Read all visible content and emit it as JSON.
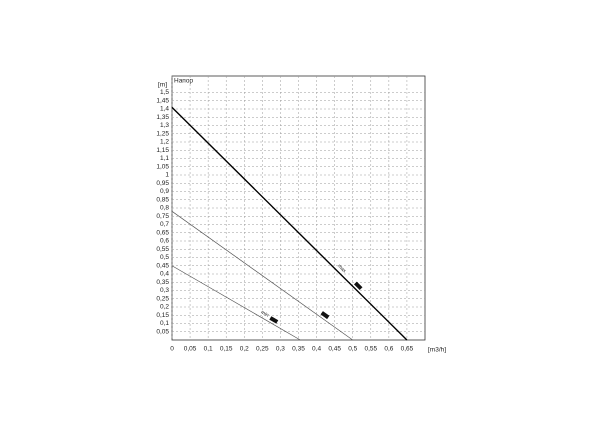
{
  "chart_data": {
    "type": "line",
    "title": "Напор",
    "y_label": "[m]",
    "x_label": "[m3/h]",
    "xlim": [
      0,
      0.7
    ],
    "ylim": [
      0,
      1.6
    ],
    "grid": true,
    "xticks": [
      0,
      {
        "value": 0.05,
        "label": "0,05"
      },
      {
        "value": 0.1,
        "label": "0,1"
      },
      {
        "value": 0.15,
        "label": "0,15"
      },
      {
        "value": 0.2,
        "label": "0,2"
      },
      {
        "value": 0.25,
        "label": "0,25"
      },
      {
        "value": 0.3,
        "label": "0,3"
      },
      {
        "value": 0.35,
        "label": "0,35"
      },
      {
        "value": 0.4,
        "label": "0,4"
      },
      {
        "value": 0.45,
        "label": "0,45"
      },
      {
        "value": 0.5,
        "label": "0,5"
      },
      {
        "value": 0.55,
        "label": "0,55"
      },
      {
        "value": 0.6,
        "label": "0,6"
      },
      {
        "value": 0.65,
        "label": "0,65"
      }
    ],
    "yticks": [
      {
        "value": 0.05,
        "label": "0,05"
      },
      {
        "value": 0.1,
        "label": "0,1"
      },
      {
        "value": 0.15,
        "label": "0,15"
      },
      {
        "value": 0.2,
        "label": "0,2"
      },
      {
        "value": 0.25,
        "label": "0,25"
      },
      {
        "value": 0.3,
        "label": "0,3"
      },
      {
        "value": 0.35,
        "label": "0,35"
      },
      {
        "value": 0.4,
        "label": "0,4"
      },
      {
        "value": 0.45,
        "label": "0,45"
      },
      {
        "value": 0.5,
        "label": "0,5"
      },
      {
        "value": 0.55,
        "label": "0,55"
      },
      {
        "value": 0.6,
        "label": "0,6"
      },
      {
        "value": 0.65,
        "label": "0,65"
      },
      {
        "value": 0.7,
        "label": "0,7"
      },
      {
        "value": 0.75,
        "label": "0,75"
      },
      {
        "value": 0.8,
        "label": "0,8"
      },
      {
        "value": 0.85,
        "label": "0,85"
      },
      {
        "value": 0.9,
        "label": "0,9"
      },
      {
        "value": 0.95,
        "label": "0,95"
      },
      1,
      {
        "value": 1.05,
        "label": "1,05"
      },
      {
        "value": 1.1,
        "label": "1,1"
      },
      {
        "value": 1.15,
        "label": "1,15"
      },
      {
        "value": 1.2,
        "label": "1,2"
      },
      {
        "value": 1.25,
        "label": "1,25"
      },
      {
        "value": 1.3,
        "label": "1,3"
      },
      {
        "value": 1.35,
        "label": "1,35"
      },
      {
        "value": 1.4,
        "label": "1,4"
      },
      {
        "value": 1.45,
        "label": "1,45"
      },
      {
        "value": 1.5,
        "label": "1,5"
      }
    ],
    "series": [
      {
        "name": "max",
        "color": "#000000",
        "x": [
          0,
          0.65
        ],
        "values": [
          1.41,
          0
        ]
      },
      {
        "color": "#555555",
        "x": [
          0,
          0.5
        ],
        "values": [
          0.78,
          0
        ]
      },
      {
        "name": "min",
        "color": "#555555",
        "x": [
          0,
          0.355
        ],
        "values": [
          0.45,
          0
        ]
      }
    ]
  }
}
